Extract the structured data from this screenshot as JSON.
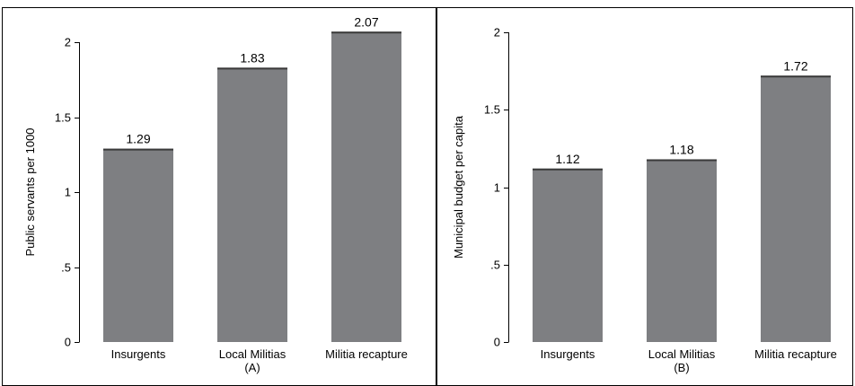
{
  "chart_data": [
    {
      "type": "bar",
      "panel_label": "(A)",
      "ylabel": "Public servants per 1000",
      "categories": [
        "Insurgents",
        "Local Militias",
        "Militia recapture"
      ],
      "values": [
        1.29,
        1.83,
        2.07
      ],
      "value_labels": [
        "1.29",
        "1.83",
        "2.07"
      ],
      "ylim": [
        0,
        2.0
      ],
      "yticks": [
        0,
        0.5,
        1,
        1.5,
        2
      ],
      "ytick_labels": [
        "0",
        ".5",
        "1",
        "1.5",
        "2"
      ],
      "bar_color": "#7e7f82",
      "grid": false
    },
    {
      "type": "bar",
      "panel_label": "(B)",
      "ylabel": "Municipal budget per capita",
      "categories": [
        "Insurgents",
        "Local Militias",
        "Militia recapture"
      ],
      "values": [
        1.12,
        1.18,
        1.72
      ],
      "value_labels": [
        "1.12",
        "1.18",
        "1.72"
      ],
      "ylim": [
        0,
        2.0
      ],
      "yticks": [
        0,
        0.5,
        1,
        1.5,
        2
      ],
      "ytick_labels": [
        "0",
        ".5",
        "1",
        "1.5",
        "2"
      ],
      "bar_color": "#7e7f82",
      "grid": false
    }
  ]
}
